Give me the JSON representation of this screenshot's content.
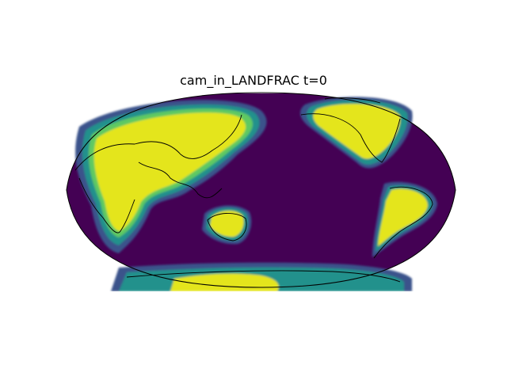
{
  "figure": {
    "title": "cam_in_LANDFRAC t=0"
  },
  "map": {
    "projection": "Robinson",
    "central_longitude": 180,
    "colormap": "viridis",
    "colorbar": false,
    "palette": {
      "ocean": "#440154",
      "level_1": "#3b528b",
      "level_2": "#21918c",
      "level_3": "#5ec962",
      "land": "#e4e51e",
      "coastline": "#000000",
      "frame": "#000000",
      "background": "#ffffff"
    }
  }
}
